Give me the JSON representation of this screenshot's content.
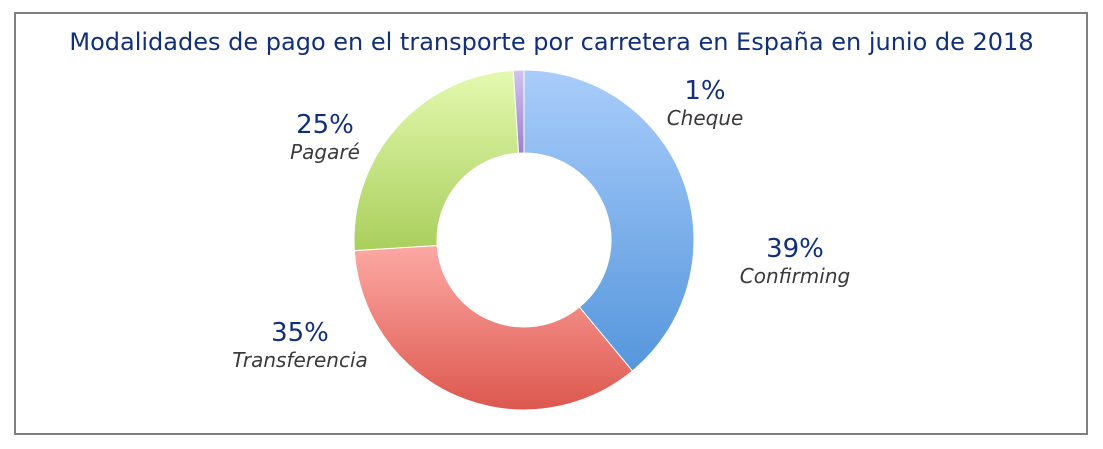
{
  "chart_data": {
    "type": "pie",
    "variant": "donut",
    "title": "Modalidades de pago en el transporte por carretera en España en junio de 2018",
    "slices": [
      {
        "label": "Confirming",
        "value": 39,
        "value_label": "39%",
        "color_top": "#a9cdfb",
        "color_bottom": "#5596dc"
      },
      {
        "label": "Transferencia",
        "value": 35,
        "value_label": "35%",
        "color_top": "#fda9a4",
        "color_bottom": "#dc574e"
      },
      {
        "label": "Pagaré",
        "value": 25,
        "value_label": "25%",
        "color_top": "#e4f9b0",
        "color_bottom": "#a9cf5c"
      },
      {
        "label": "Cheque",
        "value": 1,
        "value_label": "1%",
        "color_top": "#d3c2ef",
        "color_bottom": "#9b80cf"
      }
    ]
  }
}
